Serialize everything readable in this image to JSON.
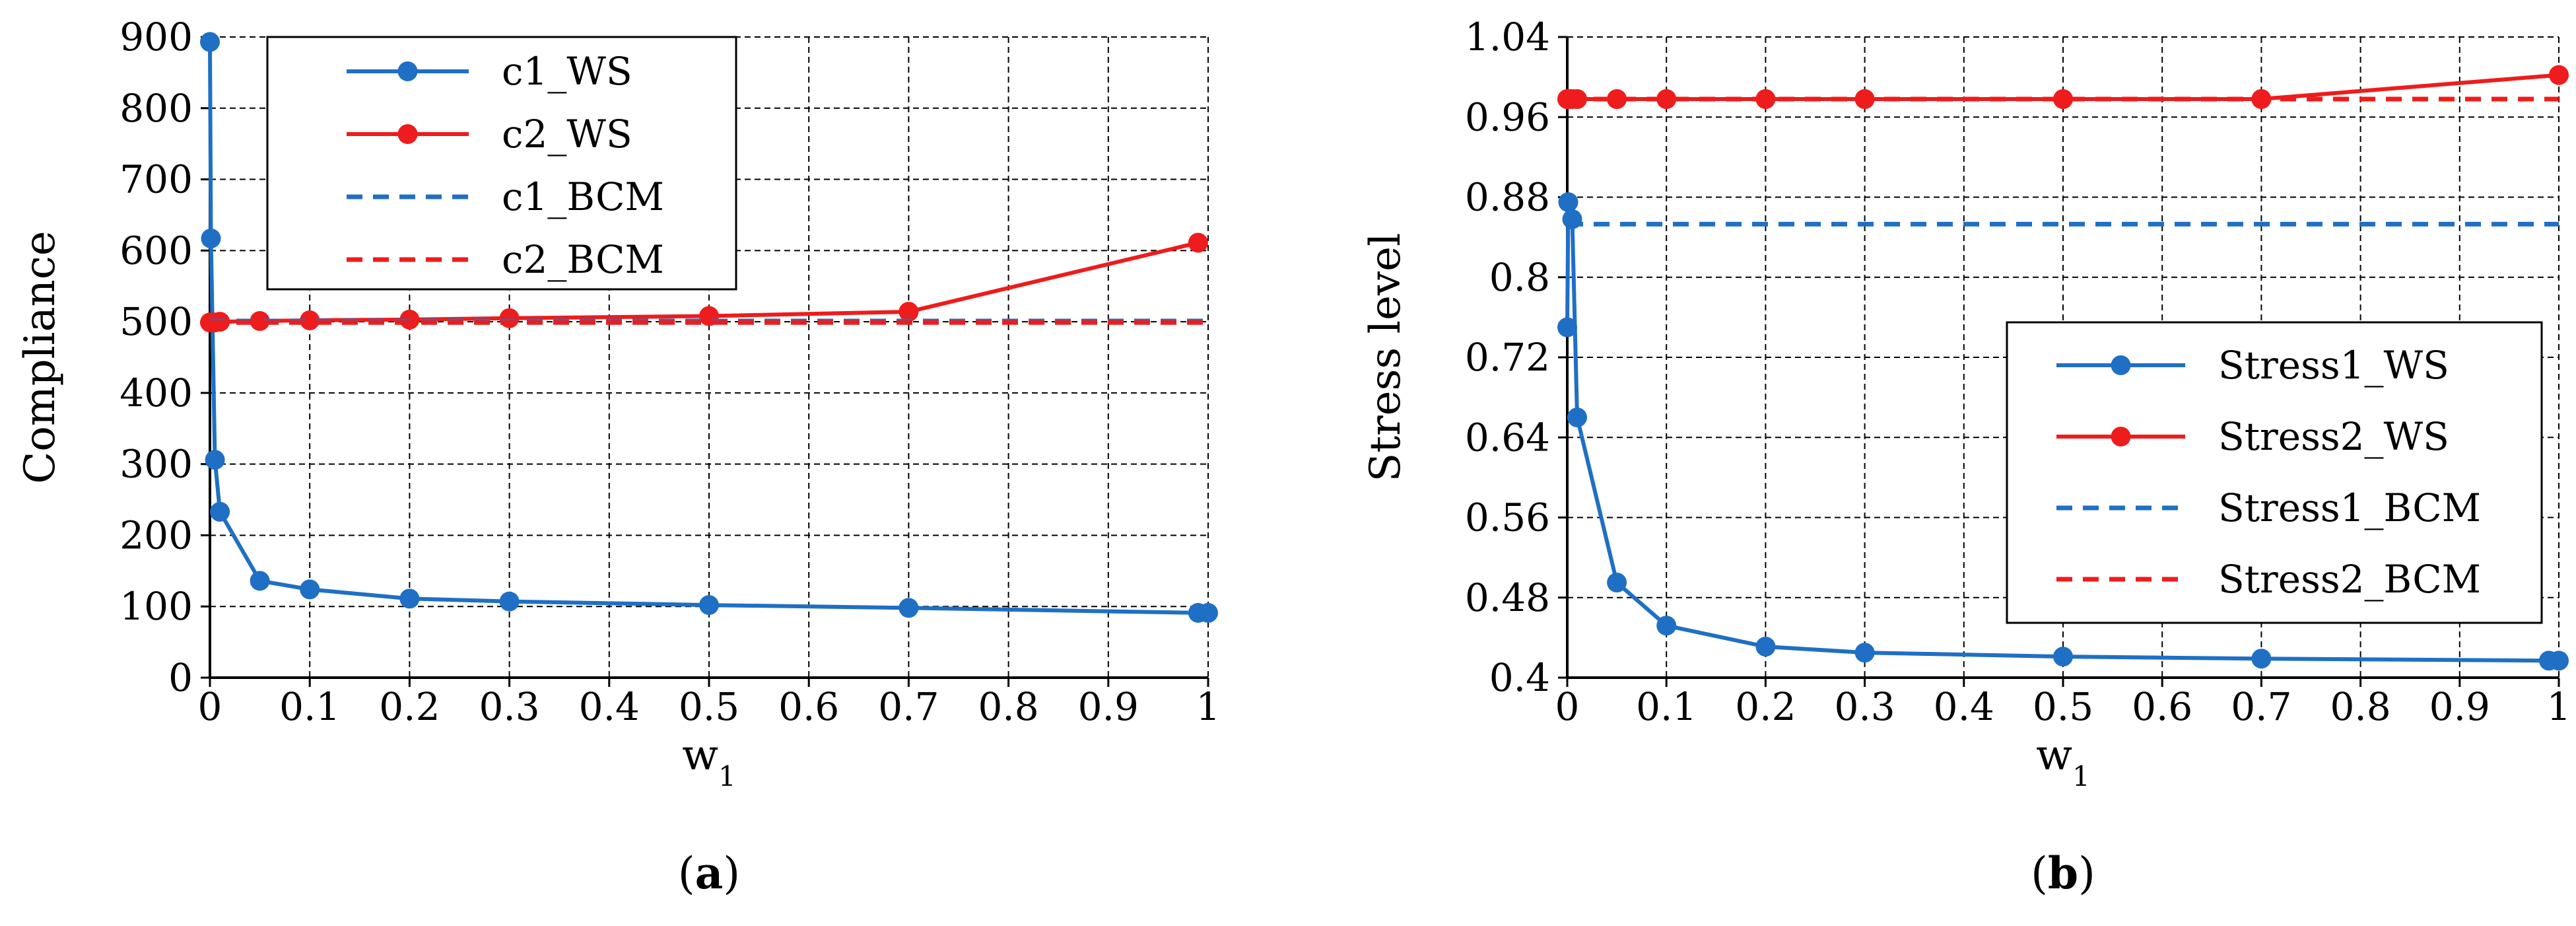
{
  "colors": {
    "blue": "#1f6fc5",
    "red": "#ee1c1c"
  },
  "chart_data": [
    {
      "type": "line",
      "panel": "a",
      "caption": {
        "open": "(",
        "label": "a",
        "close": ")"
      },
      "xlabel": "w",
      "xlabel_sub": "1",
      "ylabel": "Compliance",
      "xlim": [
        0,
        1
      ],
      "ylim": [
        0,
        900
      ],
      "xticks": [
        "0",
        "0.1",
        "0.2",
        "0.3",
        "0.4",
        "0.5",
        "0.6",
        "0.7",
        "0.8",
        "0.9",
        "1"
      ],
      "yticks": [
        "0",
        "100",
        "200",
        "300",
        "400",
        "500",
        "600",
        "700",
        "800",
        "900"
      ],
      "legend_position": "top-left",
      "series": [
        {
          "name": "c1_WS",
          "color": "#1f6fc5",
          "style": "solid",
          "markers": true,
          "x": [
            0,
            0.001,
            0.005,
            0.01,
            0.05,
            0.1,
            0.2,
            0.3,
            0.5,
            0.7,
            0.99,
            1
          ],
          "y": [
            893,
            617,
            306,
            233,
            136,
            124,
            111,
            107,
            102,
            98,
            91,
            91
          ]
        },
        {
          "name": "c2_WS",
          "color": "#ee1c1c",
          "style": "solid",
          "markers": true,
          "x": [
            0,
            0.001,
            0.005,
            0.01,
            0.05,
            0.1,
            0.2,
            0.3,
            0.5,
            0.7,
            0.99
          ],
          "y": [
            499,
            499,
            499,
            500,
            501,
            502,
            503,
            505,
            508,
            514,
            611
          ]
        },
        {
          "name": "c1_BCM",
          "color": "#1f6fc5",
          "style": "dashed",
          "markers": false,
          "x": [
            0,
            1
          ],
          "y": [
            501,
            501
          ]
        },
        {
          "name": "c2_BCM",
          "color": "#ee1c1c",
          "style": "dashed",
          "markers": false,
          "x": [
            0,
            1
          ],
          "y": [
            499,
            499
          ]
        }
      ]
    },
    {
      "type": "line",
      "panel": "b",
      "caption": {
        "open": "(",
        "label": "b",
        "close": ")"
      },
      "xlabel": "w",
      "xlabel_sub": "1",
      "ylabel": "Stress level",
      "xlim": [
        0,
        1
      ],
      "ylim": [
        0.4,
        1.04
      ],
      "xticks": [
        "0",
        "0.1",
        "0.2",
        "0.3",
        "0.4",
        "0.5",
        "0.6",
        "0.7",
        "0.8",
        "0.9",
        "1"
      ],
      "yticks": [
        "0.4",
        "0.48",
        "0.56",
        "0.64",
        "0.72",
        "0.8",
        "0.88",
        "0.96",
        "1.04"
      ],
      "legend_position": "bottom-right",
      "series": [
        {
          "name": "Stress1_WS",
          "color": "#1f6fc5",
          "style": "solid",
          "markers": true,
          "x": [
            0,
            0.001,
            0.005,
            0.01,
            0.05,
            0.1,
            0.2,
            0.3,
            0.5,
            0.7,
            0.99,
            1
          ],
          "y": [
            0.75,
            0.875,
            0.858,
            0.66,
            0.495,
            0.452,
            0.431,
            0.425,
            0.421,
            0.419,
            0.417,
            0.417
          ]
        },
        {
          "name": "Stress2_WS",
          "color": "#ee1c1c",
          "style": "solid",
          "markers": true,
          "x": [
            0,
            0.001,
            0.005,
            0.01,
            0.05,
            0.1,
            0.2,
            0.3,
            0.5,
            0.7,
            1
          ],
          "y": [
            0.978,
            0.978,
            0.978,
            0.978,
            0.978,
            0.978,
            0.978,
            0.978,
            0.978,
            0.978,
            1.002
          ]
        },
        {
          "name": "Stress1_BCM",
          "color": "#1f6fc5",
          "style": "dashed",
          "markers": false,
          "x": [
            0,
            1
          ],
          "y": [
            0.853,
            0.853
          ]
        },
        {
          "name": "Stress2_BCM",
          "color": "#ee1c1c",
          "style": "dashed",
          "markers": false,
          "x": [
            0,
            1
          ],
          "y": [
            0.978,
            0.978
          ]
        }
      ]
    }
  ]
}
